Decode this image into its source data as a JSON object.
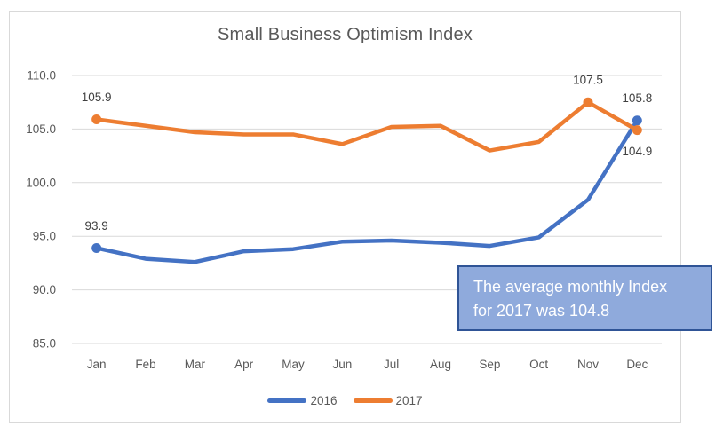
{
  "chart_data": {
    "type": "line",
    "title": "Small Business Optimism Index",
    "categories": [
      "Jan",
      "Feb",
      "Mar",
      "Apr",
      "May",
      "Jun",
      "Jul",
      "Aug",
      "Sep",
      "Oct",
      "Nov",
      "Dec"
    ],
    "series": [
      {
        "name": "2016",
        "color": "#4472C4",
        "values": [
          93.9,
          92.9,
          92.6,
          93.6,
          93.8,
          94.5,
          94.6,
          94.4,
          94.1,
          94.9,
          98.4,
          105.8
        ]
      },
      {
        "name": "2017",
        "color": "#ED7D31",
        "values": [
          105.9,
          105.3,
          104.7,
          104.5,
          104.5,
          103.6,
          105.2,
          105.3,
          103.0,
          103.8,
          107.5,
          104.9
        ]
      }
    ],
    "ylim": [
      85.0,
      110.0
    ],
    "ytick_step": 5,
    "ytick_labels": [
      "110.0",
      "105.0",
      "100.0",
      "95.0",
      "90.0",
      "85.0"
    ],
    "grid": true,
    "legend_position": "bottom",
    "data_labels": [
      {
        "series": "2017",
        "category": "Jan",
        "text": "105.9",
        "placement": "above"
      },
      {
        "series": "2016",
        "category": "Jan",
        "text": "93.9",
        "placement": "above"
      },
      {
        "series": "2017",
        "category": "Nov",
        "text": "107.5",
        "placement": "above"
      },
      {
        "series": "2016",
        "category": "Dec",
        "text": "105.8",
        "placement": "above"
      },
      {
        "series": "2017",
        "category": "Dec",
        "text": "104.9",
        "placement": "below"
      }
    ]
  },
  "legend": {
    "items": [
      {
        "label": "2016",
        "color": "#4472C4"
      },
      {
        "label": "2017",
        "color": "#ED7D31"
      }
    ]
  },
  "annotation_box": {
    "line1": "The average monthly Index",
    "line2": "for 2017 was 104.8",
    "fill_color": "#8FAADC",
    "border_color": "#2F5496",
    "text_color": "#FFFFFF"
  },
  "colors": {
    "title_text": "#595959",
    "axis_text": "#595959",
    "data_label_text": "#404040",
    "gridline": "#D9D9D9",
    "frame_border": "#D9D9D9"
  }
}
